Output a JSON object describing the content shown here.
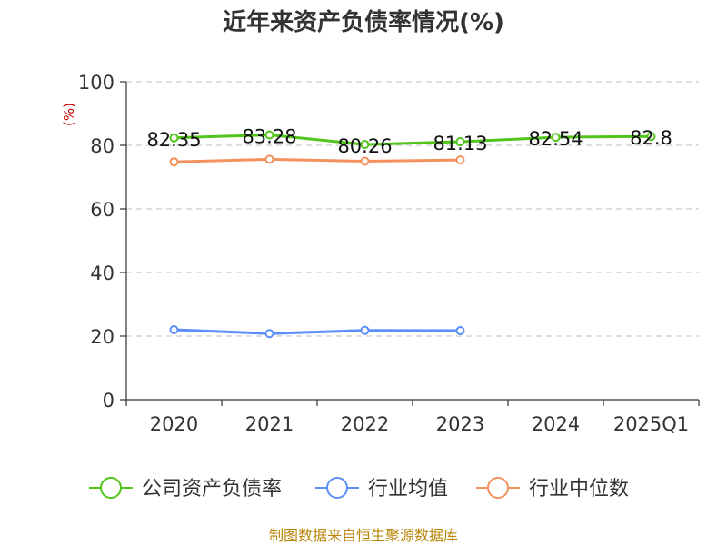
{
  "chart_data": {
    "type": "line",
    "title": "近年来资产负债率情况(%)",
    "ylabel": "(%)",
    "xlabel": "",
    "categories": [
      "2020",
      "2021",
      "2022",
      "2023",
      "2024",
      "2025Q1"
    ],
    "ylim": [
      0,
      100
    ],
    "yticks": [
      0,
      20,
      40,
      60,
      80,
      100
    ],
    "grid": true,
    "legend_position": "bottom",
    "series": [
      {
        "name": "公司资产负债率",
        "color": "#52c41a",
        "values": [
          82.35,
          83.28,
          80.26,
          81.13,
          82.54,
          82.8
        ],
        "labels": [
          "82.35",
          "83.28",
          "80.26",
          "81.13",
          "82.54",
          "82.8"
        ],
        "show_labels": true
      },
      {
        "name": "行业均值",
        "color": "#5b8ff9",
        "values": [
          22.0,
          20.8,
          21.8,
          21.7,
          null,
          null
        ],
        "show_labels": false
      },
      {
        "name": "行业中位数",
        "color": "#f4915e",
        "values": [
          74.8,
          75.6,
          75.0,
          75.4,
          null,
          null
        ],
        "show_labels": false
      }
    ]
  },
  "source": "制图数据来自恒生聚源数据库"
}
